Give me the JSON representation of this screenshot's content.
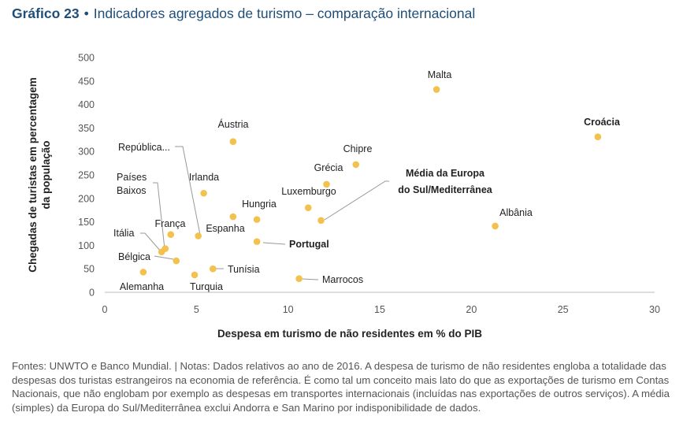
{
  "header": {
    "figure_number": "Gráfico 23",
    "separator": "•",
    "title": "Indicadores agregados de turismo – comparação internacional"
  },
  "footnote": "Fontes: UNWTO e Banco Mundial.  |  Notas: Dados relativos ao ano de 2016. A despesa de turismo de não residentes engloba a totalidade das despesas dos turistas estrangeiros na economia de referência. É como tal um conceito mais lato do que as exportações de turismo em Contas Nacionais, que não englobam por exemplo as despesas em transportes internacionais (incluídas nas exportações de outros serviços). A média (simples) da Europa do Sul/Mediterrânea exclui Andorra e San Marino por indisponibilidade de dados.",
  "colors": {
    "point": "#f2c14e",
    "title": "#1f4e79",
    "leader": "#999999"
  },
  "chart_data": {
    "type": "scatter",
    "xlabel": "Despesa em turismo de não residentes em % do PIB",
    "ylabel": [
      "Chegadas de turistas em percentagem",
      "da população"
    ],
    "xlim": [
      0,
      30
    ],
    "ylim": [
      0,
      500
    ],
    "xticks": [
      0,
      5,
      10,
      15,
      20,
      25,
      30
    ],
    "yticks": [
      0,
      50,
      100,
      150,
      200,
      250,
      300,
      350,
      400,
      450,
      500
    ],
    "grid": false,
    "points": [
      {
        "label": "Malta",
        "x": 18.1,
        "y": 432
      },
      {
        "label": "Croácia",
        "x": 26.9,
        "y": 331,
        "bold": true
      },
      {
        "label": "Áustria",
        "x": 7.0,
        "y": 321
      },
      {
        "label": "Chipre",
        "x": 13.7,
        "y": 272
      },
      {
        "label": "Grécia",
        "x": 12.1,
        "y": 230
      },
      {
        "label": "Irlanda",
        "x": 5.4,
        "y": 211
      },
      {
        "label": "Luxemburgo",
        "x": 11.1,
        "y": 180
      },
      {
        "label": "Hungria",
        "x": 8.3,
        "y": 155
      },
      {
        "label": "Espanha",
        "x": 7.0,
        "y": 161
      },
      {
        "label": "Albânia",
        "x": 21.3,
        "y": 141
      },
      {
        "label": "França",
        "x": 3.6,
        "y": 123
      },
      {
        "label": "República...",
        "x": 5.1,
        "y": 120
      },
      {
        "label": "Portugal",
        "x": 8.3,
        "y": 108,
        "bold": true
      },
      {
        "label": "Países Baixos",
        "x": 3.3,
        "y": 93
      },
      {
        "label": "Itália",
        "x": 3.1,
        "y": 86
      },
      {
        "label": "Bélgica",
        "x": 3.9,
        "y": 67
      },
      {
        "label": "Tunísia",
        "x": 5.9,
        "y": 50
      },
      {
        "label": "Alemanha",
        "x": 2.1,
        "y": 43
      },
      {
        "label": "Turquia",
        "x": 4.9,
        "y": 37
      },
      {
        "label": "Marrocos",
        "x": 10.6,
        "y": 29
      },
      {
        "label": "Média da Europa do Sul/Mediterrânea",
        "x": 11.8,
        "y": 153,
        "bold": true
      }
    ]
  }
}
